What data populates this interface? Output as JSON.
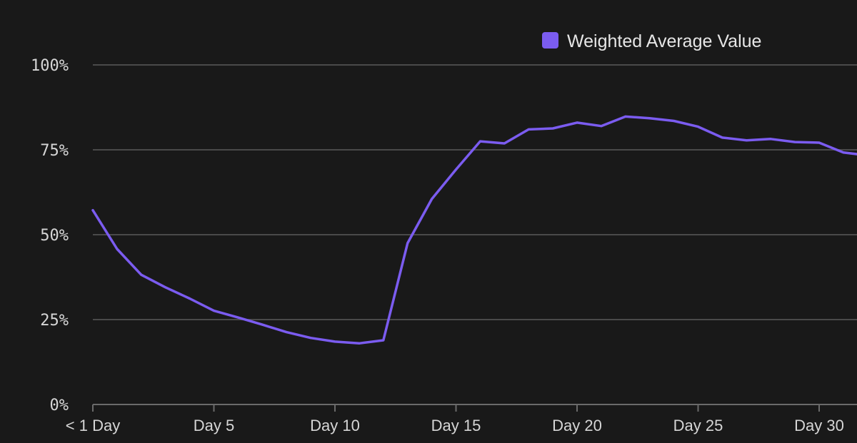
{
  "chart_data": {
    "type": "line",
    "title": "",
    "xlabel": "",
    "ylabel": "",
    "x_tick_labels": [
      "< 1 Day",
      "Day 5",
      "Day 10",
      "Day 15",
      "Day 20",
      "Day 25",
      "Day 30"
    ],
    "x_tick_days": [
      0,
      5,
      10,
      15,
      20,
      25,
      30
    ],
    "y_tick_labels": [
      "0%",
      "25%",
      "50%",
      "75%",
      "100%"
    ],
    "y_tick_values": [
      0,
      25,
      50,
      75,
      100
    ],
    "ylim": [
      0,
      100
    ],
    "xlim": [
      0,
      31.6
    ],
    "grid": true,
    "legend_position": "top-right",
    "x": [
      0,
      1,
      2,
      3,
      4,
      5,
      6,
      7,
      8,
      9,
      10,
      11,
      12,
      13,
      14,
      15,
      16,
      17,
      18,
      19,
      20,
      21,
      22,
      23,
      24,
      25,
      26,
      27,
      28,
      29,
      30,
      31,
      31.6
    ],
    "series": [
      {
        "name": "Weighted Average Value",
        "color": "#7b5cf0",
        "values": [
          57.2,
          45.8,
          38.2,
          34.5,
          31.2,
          27.6,
          25.6,
          23.5,
          21.3,
          19.6,
          18.5,
          18.0,
          18.9,
          47.5,
          60.5,
          69.2,
          77.5,
          76.9,
          81.0,
          81.3,
          83.0,
          82.0,
          84.8,
          84.3,
          83.5,
          81.8,
          78.6,
          77.8,
          78.2,
          77.3,
          77.1,
          74.2,
          73.7
        ]
      }
    ]
  }
}
